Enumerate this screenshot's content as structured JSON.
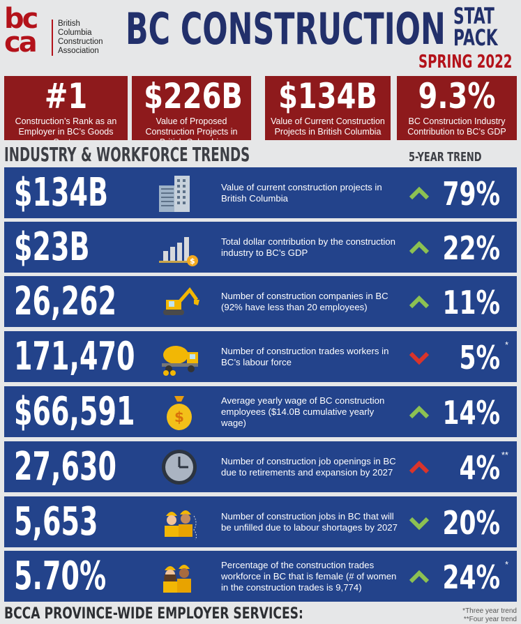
{
  "header": {
    "logo_letters": [
      "bc",
      "ca"
    ],
    "org_lines": [
      "British",
      "Columbia",
      "Construction",
      "Association"
    ],
    "title": "BC CONSTRUCTION",
    "statpack": [
      "STAT",
      "PACK"
    ],
    "edition": "SPRING 2022"
  },
  "top_stats": [
    {
      "value": "#1",
      "label": "Construction’s Rank as an Employer in BC’s Goods Sector"
    },
    {
      "value": "$226B",
      "label": "Value of Proposed Construction Projects in British Columbia"
    },
    {
      "value": "$134B",
      "label": "Value of Current Construction Projects in British Columbia"
    },
    {
      "value": "9.3%",
      "label": "BC Construction Industry Contribution to BC’s GDP"
    }
  ],
  "section": {
    "title": "INDUSTRY & WORKFORCE TRENDS",
    "trend_header": "5-YEAR TREND"
  },
  "rows": [
    {
      "value": "$134B",
      "icon": "buildings-icon",
      "desc": "Value of current construction projects in British Columbia",
      "trend": "up",
      "pct": "79%",
      "note": ""
    },
    {
      "value": "$23B",
      "icon": "bar-chart-coin-icon",
      "desc": "Total dollar contribution by the construction industry to BC’s GDP",
      "trend": "up",
      "pct": "22%",
      "note": ""
    },
    {
      "value": "26,262",
      "icon": "excavator-icon",
      "desc": "Number of construction companies in BC (92% have less than 20 employees)",
      "trend": "up",
      "pct": "11%",
      "note": ""
    },
    {
      "value": "171,470",
      "icon": "cement-mixer-icon",
      "desc": "Number of construction trades workers in BC’s labour force",
      "trend": "down",
      "pct": "5%",
      "note": "*"
    },
    {
      "value": "$66,591",
      "icon": "money-bag-icon",
      "desc": "Average yearly wage of BC construction employees ($14.0B cumulative yearly wage)",
      "trend": "up",
      "pct": "14%",
      "note": ""
    },
    {
      "value": "27,630",
      "icon": "clock-icon",
      "desc": "Number of construction job openings in BC due to retirements and expansion by 2027",
      "trend": "up-red",
      "pct": "4%",
      "note": "**"
    },
    {
      "value": "5,653",
      "icon": "workers-icon",
      "desc": "Number of construction jobs in BC that will be unfilled due to labour shortages by 2027",
      "trend": "down-green",
      "pct": "20%",
      "note": ""
    },
    {
      "value": "5.70%",
      "icon": "female-workers-icon",
      "desc": "Percentage of the construction trades workforce in BC that is female (# of women in the construction trades is 9,774)",
      "trend": "up",
      "pct": "24%",
      "note": "*"
    }
  ],
  "colors": {
    "navy": "#23438b",
    "red": "#8e1a1c",
    "green": "#8cc152",
    "arrow_red": "#d9342b"
  },
  "footer": {
    "title": "BCCA PROVINCE-WIDE EMPLOYER SERVICES:",
    "notes": [
      "*Three year trend",
      "**Four year trend"
    ]
  }
}
